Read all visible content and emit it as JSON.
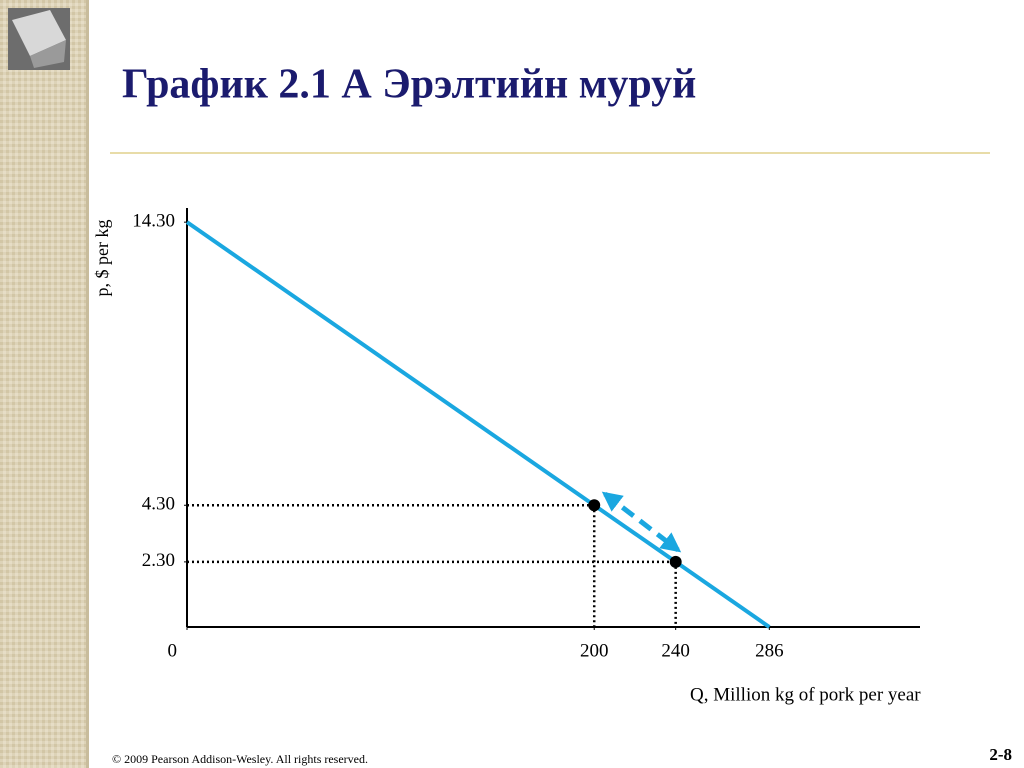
{
  "chart_data": {
    "type": "line",
    "title": "График 2.1  А Эрэлтийн муруй",
    "xlabel": "Q, Million kg of pork per year",
    "ylabel": "p, $ per kg",
    "curve": {
      "x": [
        0,
        286
      ],
      "values": [
        14.3,
        0
      ],
      "color": "#1aa7e0"
    },
    "points": {
      "x": [
        200,
        240
      ],
      "values": [
        4.3,
        2.3
      ],
      "color": "#000000"
    },
    "xlim": [
      0,
      360
    ],
    "ylim": [
      0,
      14.8
    ],
    "xticks": [
      0,
      200,
      240,
      286
    ],
    "yticks": [
      {
        "value": 2.3,
        "label": "2.30"
      },
      {
        "value": 4.3,
        "label": "4.30"
      },
      {
        "value": 14.3,
        "label": "14.30"
      }
    ],
    "guides": true
  },
  "slide": {
    "footer": "© 2009 Pearson Addison-Wesley. All rights reserved.",
    "page": "2-8"
  }
}
